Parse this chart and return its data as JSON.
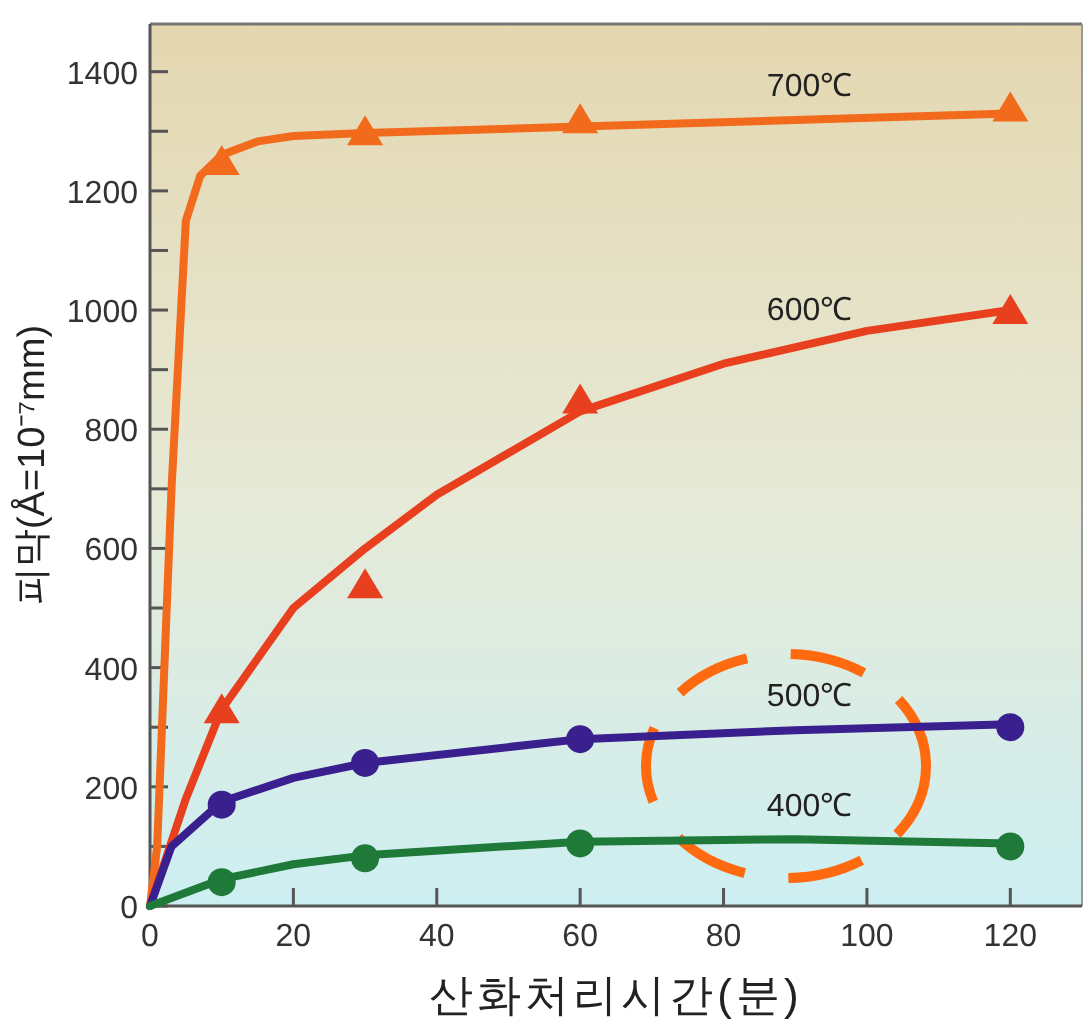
{
  "chart_data": {
    "type": "line",
    "xlabel": "산화처리시간(분)",
    "ylabel": "피막(Å=10⁻⁷mm)",
    "xlim": [
      0,
      130
    ],
    "ylim": [
      0,
      1480
    ],
    "xticks": [
      0,
      20,
      40,
      60,
      80,
      100,
      120
    ],
    "yticks": [
      0,
      {
        "value": 100,
        "label": null
      },
      200,
      {
        "value": 300,
        "label": null
      },
      400,
      {
        "value": 500,
        "label": null
      },
      600,
      {
        "value": 700,
        "label": null
      },
      800,
      {
        "value": 900,
        "label": null
      },
      1000,
      {
        "value": 1100,
        "label": null
      },
      1200,
      {
        "value": 1300,
        "label": null
      },
      1400
    ],
    "grid": false,
    "legend": false,
    "line_style": "solid",
    "marker": "none",
    "series": [
      {
        "name": "700℃",
        "color": "#f26a1b",
        "x": [
          0,
          1,
          3,
          5,
          7,
          10,
          15,
          20,
          30,
          60,
          120
        ],
        "values": [
          0,
          100,
          700,
          1150,
          1225,
          1260,
          1283,
          1292,
          1297,
          1308,
          1330
        ]
      },
      {
        "name": "600℃",
        "color": "#e8401f",
        "x": [
          0,
          5,
          10,
          20,
          30,
          40,
          60,
          80,
          100,
          120
        ],
        "values": [
          0,
          180,
          330,
          500,
          600,
          690,
          830,
          910,
          965,
          1000
        ]
      },
      {
        "name": "500℃",
        "color": "#3a1f8f",
        "x": [
          0,
          3,
          10,
          20,
          30,
          60,
          90,
          120
        ],
        "values": [
          0,
          100,
          175,
          215,
          240,
          280,
          295,
          305
        ]
      },
      {
        "name": "400℃",
        "color": "#1f7a3a",
        "x": [
          0,
          10,
          20,
          30,
          60,
          90,
          120
        ],
        "values": [
          0,
          45,
          70,
          85,
          108,
          112,
          105
        ]
      },
      {
        "type": "scatter",
        "marker": "triangle",
        "color": "#f26a1b",
        "x": [
          10,
          30,
          60,
          120
        ],
        "values": [
          1250,
          1300,
          1320,
          1340
        ]
      },
      {
        "type": "scatter",
        "marker": "triangle",
        "color": "#e8401f",
        "x": [
          10,
          30,
          60,
          120
        ],
        "values": [
          330,
          540,
          850,
          1000
        ]
      },
      {
        "type": "scatter",
        "marker": "circle",
        "color": "#3a1f8f",
        "x": [
          10,
          30,
          60,
          120
        ],
        "values": [
          170,
          240,
          280,
          300
        ]
      },
      {
        "type": "scatter",
        "marker": "circle",
        "color": "#1f7a3a",
        "x": [
          10,
          30,
          60,
          120
        ],
        "values": [
          40,
          80,
          105,
          100
        ]
      }
    ]
  }
}
